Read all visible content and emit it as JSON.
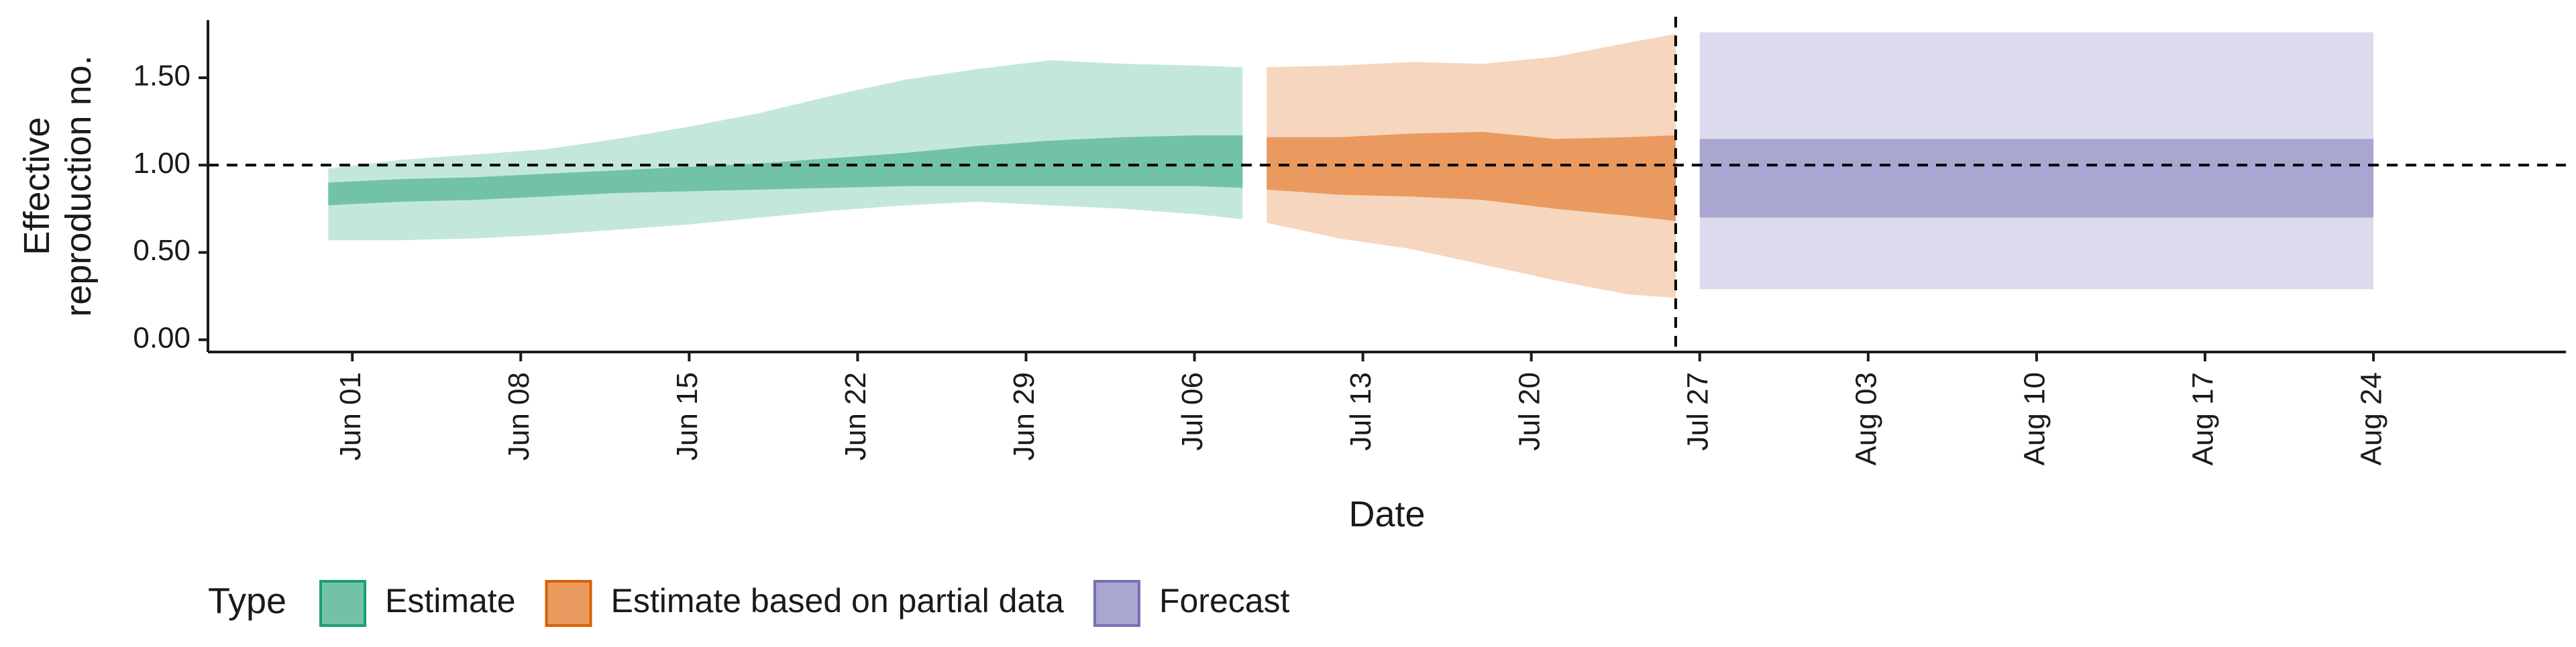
{
  "chart_data": {
    "type": "area",
    "title": "",
    "xlabel": "Date",
    "ylabel_lines": [
      "Effective",
      "reproduction no."
    ],
    "x_ticks": [
      "Jun 01",
      "Jun 08",
      "Jun 15",
      "Jun 22",
      "Jun 29",
      "Jul 06",
      "Jul 13",
      "Jul 20",
      "Jul 27",
      "Aug 03",
      "Aug 10",
      "Aug 17",
      "Aug 24"
    ],
    "y_ticks": [
      "0.00",
      "0.50",
      "1.00",
      "1.50"
    ],
    "ylim": [
      -0.07,
      1.83
    ],
    "xlim": [
      "2020-05-26",
      "2020-09-01"
    ],
    "reference_lines": {
      "horizontal_y": 1.0,
      "vertical_x": "2020-07-26"
    },
    "legend": {
      "title": "Type",
      "position": "bottom-left",
      "items": [
        {
          "label": "Estimate",
          "fill": "#72c3a6",
          "stroke": "#1b9e77"
        },
        {
          "label": "Estimate based on partial data",
          "fill": "#ea9a5e",
          "stroke": "#d95f02"
        },
        {
          "label": "Forecast",
          "fill": "#a9a6d1",
          "stroke": "#7570b3"
        }
      ]
    },
    "series": [
      {
        "name": "Estimate",
        "inner_fill": "#72c3a6",
        "outer_fill": "#c4e7dc",
        "points": [
          {
            "x": "2020-05-31",
            "lo90": 0.57,
            "lo50": 0.77,
            "hi50": 0.9,
            "hi90": 0.98
          },
          {
            "x": "2020-06-03",
            "lo90": 0.57,
            "lo50": 0.79,
            "hi50": 0.92,
            "hi90": 1.03
          },
          {
            "x": "2020-06-06",
            "lo90": 0.58,
            "lo50": 0.8,
            "hi50": 0.93,
            "hi90": 1.06
          },
          {
            "x": "2020-06-09",
            "lo90": 0.6,
            "lo50": 0.82,
            "hi50": 0.95,
            "hi90": 1.09
          },
          {
            "x": "2020-06-12",
            "lo90": 0.63,
            "lo50": 0.84,
            "hi50": 0.97,
            "hi90": 1.15
          },
          {
            "x": "2020-06-15",
            "lo90": 0.66,
            "lo50": 0.85,
            "hi50": 0.99,
            "hi90": 1.22
          },
          {
            "x": "2020-06-18",
            "lo90": 0.7,
            "lo50": 0.86,
            "hi50": 1.01,
            "hi90": 1.3
          },
          {
            "x": "2020-06-21",
            "lo90": 0.74,
            "lo50": 0.87,
            "hi50": 1.04,
            "hi90": 1.4
          },
          {
            "x": "2020-06-24",
            "lo90": 0.77,
            "lo50": 0.88,
            "hi50": 1.07,
            "hi90": 1.49
          },
          {
            "x": "2020-06-27",
            "lo90": 0.79,
            "lo50": 0.88,
            "hi50": 1.11,
            "hi90": 1.55
          },
          {
            "x": "2020-06-30",
            "lo90": 0.77,
            "lo50": 0.88,
            "hi50": 1.14,
            "hi90": 1.6
          },
          {
            "x": "2020-07-03",
            "lo90": 0.75,
            "lo50": 0.88,
            "hi50": 1.16,
            "hi90": 1.58
          },
          {
            "x": "2020-07-06",
            "lo90": 0.72,
            "lo50": 0.88,
            "hi50": 1.17,
            "hi90": 1.57
          },
          {
            "x": "2020-07-08",
            "lo90": 0.69,
            "lo50": 0.87,
            "hi50": 1.17,
            "hi90": 1.56
          }
        ]
      },
      {
        "name": "Estimate based on partial data",
        "inner_fill": "#ea9a5e",
        "outer_fill": "#f6d6bf",
        "points": [
          {
            "x": "2020-07-09",
            "lo90": 0.67,
            "lo50": 0.86,
            "hi50": 1.16,
            "hi90": 1.56
          },
          {
            "x": "2020-07-12",
            "lo90": 0.58,
            "lo50": 0.83,
            "hi50": 1.16,
            "hi90": 1.57
          },
          {
            "x": "2020-07-15",
            "lo90": 0.52,
            "lo50": 0.82,
            "hi50": 1.18,
            "hi90": 1.59
          },
          {
            "x": "2020-07-18",
            "lo90": 0.43,
            "lo50": 0.8,
            "hi50": 1.19,
            "hi90": 1.58
          },
          {
            "x": "2020-07-21",
            "lo90": 0.34,
            "lo50": 0.75,
            "hi50": 1.15,
            "hi90": 1.62
          },
          {
            "x": "2020-07-24",
            "lo90": 0.26,
            "lo50": 0.71,
            "hi50": 1.16,
            "hi90": 1.7
          },
          {
            "x": "2020-07-26",
            "lo90": 0.24,
            "lo50": 0.68,
            "hi50": 1.17,
            "hi90": 1.75
          }
        ]
      },
      {
        "name": "Forecast",
        "inner_fill": "#a9a6d1",
        "outer_fill": "#dcdbed",
        "points": [
          {
            "x": "2020-07-27",
            "lo90": 0.29,
            "lo50": 0.7,
            "hi50": 1.15,
            "hi90": 1.76
          },
          {
            "x": "2020-08-24",
            "lo90": 0.29,
            "lo50": 0.7,
            "hi50": 1.15,
            "hi90": 1.76
          }
        ]
      }
    ]
  }
}
